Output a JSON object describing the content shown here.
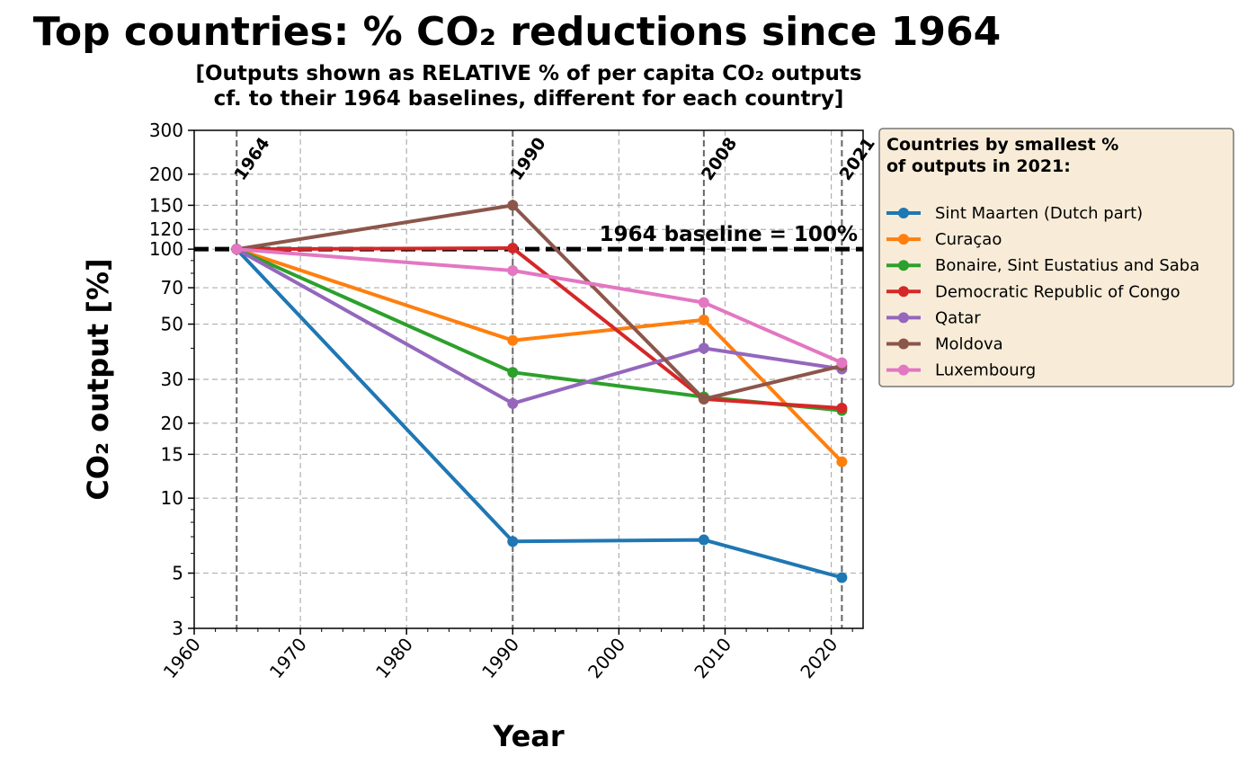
{
  "chart_data": {
    "type": "line",
    "title": "Top countries: % CO₂ reductions since 1964",
    "subtitle_line1": "[Outputs shown as RELATIVE % of per capita CO₂ outputs",
    "subtitle_line2": "cf. to their 1964 baselines, different for each country]",
    "xlabel": "Year",
    "ylabel": "CO₂ output [%]",
    "y_scale": "log",
    "xlim": [
      1960,
      2023
    ],
    "ylim": [
      3,
      300
    ],
    "x_ticks": [
      1960,
      1970,
      1980,
      1990,
      2000,
      2010,
      2020
    ],
    "y_ticks": [
      3,
      5,
      10,
      15,
      20,
      30,
      50,
      70,
      100,
      120,
      150,
      200,
      300
    ],
    "grid": true,
    "x": [
      1964,
      1990,
      2008,
      2021
    ],
    "marker_years": [
      {
        "year": 1964,
        "label": "1964"
      },
      {
        "year": 1990,
        "label": "1990"
      },
      {
        "year": 2008,
        "label": "2008"
      },
      {
        "year": 2021,
        "label": "2021"
      }
    ],
    "baseline": {
      "value": 100,
      "label": "1964 baseline = 100%"
    },
    "legend": {
      "title_line1": "Countries by smallest %",
      "title_line2": "of outputs in 2021:",
      "placement": "outside-right"
    },
    "series": [
      {
        "name": "Sint Maarten (Dutch part)",
        "color": "#1f77b4",
        "values": [
          100,
          6.7,
          6.8,
          4.8
        ]
      },
      {
        "name": "Curaçao",
        "color": "#ff7f0e",
        "values": [
          100,
          43,
          52,
          14
        ]
      },
      {
        "name": "Bonaire, Sint Eustatius and Saba",
        "color": "#2ca02c",
        "values": [
          100,
          32,
          25.5,
          22.5
        ]
      },
      {
        "name": "Democratic Republic of Congo",
        "color": "#d62728",
        "values": [
          100,
          101,
          25,
          23
        ]
      },
      {
        "name": "Qatar",
        "color": "#9467bd",
        "values": [
          100,
          24,
          40,
          33
        ]
      },
      {
        "name": "Moldova",
        "color": "#8c564b",
        "values": [
          100,
          150,
          25,
          34
        ]
      },
      {
        "name": "Luxembourg",
        "color": "#e377c2",
        "values": [
          100,
          82,
          61,
          35
        ]
      }
    ]
  }
}
